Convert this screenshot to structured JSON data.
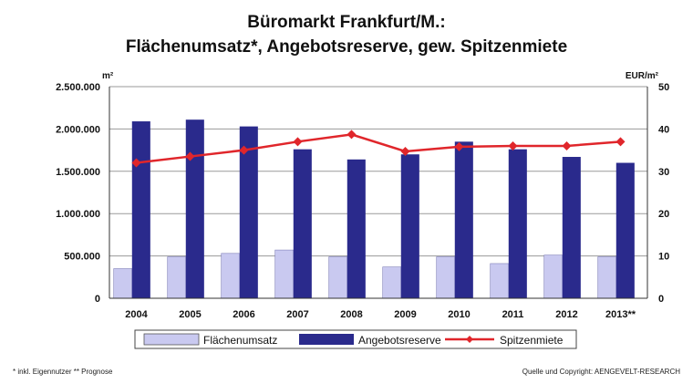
{
  "chart_data": {
    "type": "bar",
    "title": "Büromarkt Frankfurt/M.:",
    "subtitle": "Flächenumsatz*, Angebotsreserve, gew. Spitzenmiete",
    "ylabel": "m²",
    "y2label": "EUR/m²",
    "categories": [
      "2004",
      "2005",
      "2006",
      "2007",
      "2008",
      "2009",
      "2010",
      "2011",
      "2012",
      "2013**"
    ],
    "ylim": [
      0,
      2500000
    ],
    "y2lim": [
      0,
      50
    ],
    "yticks": [
      "0",
      "500.000",
      "1.000.000",
      "1.500.000",
      "2.000.000",
      "2.500.000"
    ],
    "y2ticks": [
      "0",
      "10",
      "20",
      "30",
      "40",
      "50"
    ],
    "grid": true,
    "legend_position": "bottom",
    "series": [
      {
        "name": "Flächenumsatz",
        "kind": "bar",
        "axis": "left",
        "color": "#c9c9f0",
        "values": [
          350000,
          490000,
          530000,
          570000,
          490000,
          370000,
          490000,
          410000,
          510000,
          490000
        ]
      },
      {
        "name": "Angebotsreserve",
        "kind": "bar",
        "axis": "left",
        "color": "#2a2a8c",
        "values": [
          2090000,
          2110000,
          2030000,
          1760000,
          1640000,
          1700000,
          1850000,
          1760000,
          1670000,
          1600000
        ]
      },
      {
        "name": "Spitzenmiete",
        "kind": "line",
        "axis": "right",
        "color": "#e0262b",
        "values": [
          32,
          33.5,
          35,
          37,
          38.7,
          34.7,
          35.8,
          36,
          36,
          37
        ]
      }
    ],
    "footnote_left": "* inkl. Eigennutzer   ** Prognose",
    "footnote_right": "Quelle und Copyright: AENGEVELT-RESEARCH"
  }
}
